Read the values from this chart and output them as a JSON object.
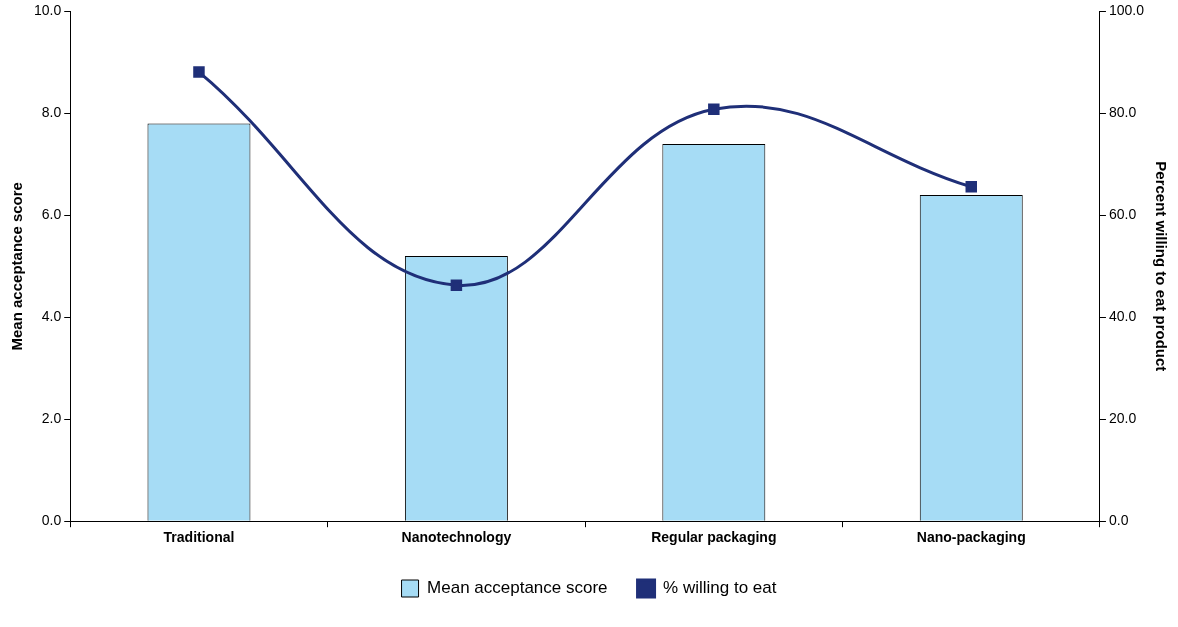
{
  "chart_data": {
    "type": "bar",
    "categories": [
      "Traditional",
      "Nanotechnology",
      "Regular packaging",
      "Nano-packaging"
    ],
    "series": [
      {
        "name": "Mean acceptance score",
        "color": "#a6dcf5",
        "values": [
          7.8,
          5.2,
          7.4,
          6.4
        ]
      },
      {
        "name": "% willing to eat",
        "type": "line",
        "axis": "y2",
        "color": "#1f2f78",
        "values": [
          88.1,
          46.3,
          80.8,
          65.6
        ]
      }
    ],
    "ylabel": "Mean acceptance score",
    "y2label": "Percent willing to eat product",
    "ylim": [
      0,
      10
    ],
    "yticks": [
      {
        "value": 0,
        "label": "0.0"
      },
      {
        "value": 2,
        "label": "2.0"
      },
      {
        "value": 4,
        "label": "4.0"
      },
      {
        "value": 6,
        "label": "6.0"
      },
      {
        "value": 8,
        "label": "8.0"
      },
      {
        "value": 10,
        "label": "10.0"
      }
    ],
    "y2lim": [
      0,
      100
    ],
    "y2ticks": [
      {
        "value": 0,
        "label": "0.0"
      },
      {
        "value": 20,
        "label": "20.0"
      },
      {
        "value": 40,
        "label": "40.0"
      },
      {
        "value": 60,
        "label": "60.0"
      },
      {
        "value": 80,
        "label": "80.0"
      },
      {
        "value": 100,
        "label": "100.0"
      }
    ],
    "grid": false,
    "legend": "bottom",
    "marker": "square",
    "line_style": "solid"
  }
}
